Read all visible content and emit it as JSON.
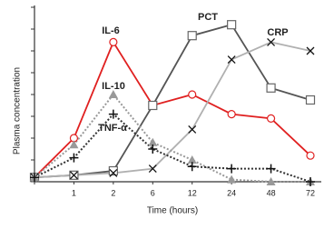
{
  "chart_data": {
    "type": "line",
    "x_label": "Time (hours)",
    "y_label": "Plasma concentration",
    "categories": [
      null,
      "1",
      "2",
      "6",
      "12",
      "24",
      "48",
      "72"
    ],
    "ylim": [
      0,
      8
    ],
    "yticks": [
      0,
      1,
      2,
      3,
      4,
      5,
      6,
      7,
      8
    ],
    "series": [
      {
        "name": "IL-6",
        "color": "#e02020",
        "marker": "circle",
        "dash": "solid",
        "values": [
          0.2,
          2.0,
          6.4,
          3.5,
          4.0,
          3.1,
          2.9,
          1.2
        ]
      },
      {
        "name": "PCT",
        "color": "#555555",
        "marker": "square",
        "dash": "solid",
        "values": [
          0.2,
          0.3,
          0.5,
          3.5,
          6.7,
          7.2,
          4.3,
          3.75
        ]
      },
      {
        "name": "CRP",
        "color": "#b0b0b0",
        "marker": "x",
        "dash": "solid",
        "values": [
          0.2,
          0.3,
          0.4,
          0.6,
          2.4,
          5.6,
          6.4,
          6.0
        ]
      },
      {
        "name": "IL-10",
        "color": "#999999",
        "marker": "triangle",
        "dash": "dotted",
        "values": [
          0.2,
          1.7,
          4.0,
          1.8,
          1.0,
          0.1,
          0,
          0
        ]
      },
      {
        "name": "TNF-α",
        "color": "#333333",
        "marker": "plus",
        "dash": "dotted",
        "values": [
          0.2,
          1.1,
          3.1,
          1.5,
          0.7,
          0.6,
          0.6,
          0
        ]
      }
    ]
  }
}
